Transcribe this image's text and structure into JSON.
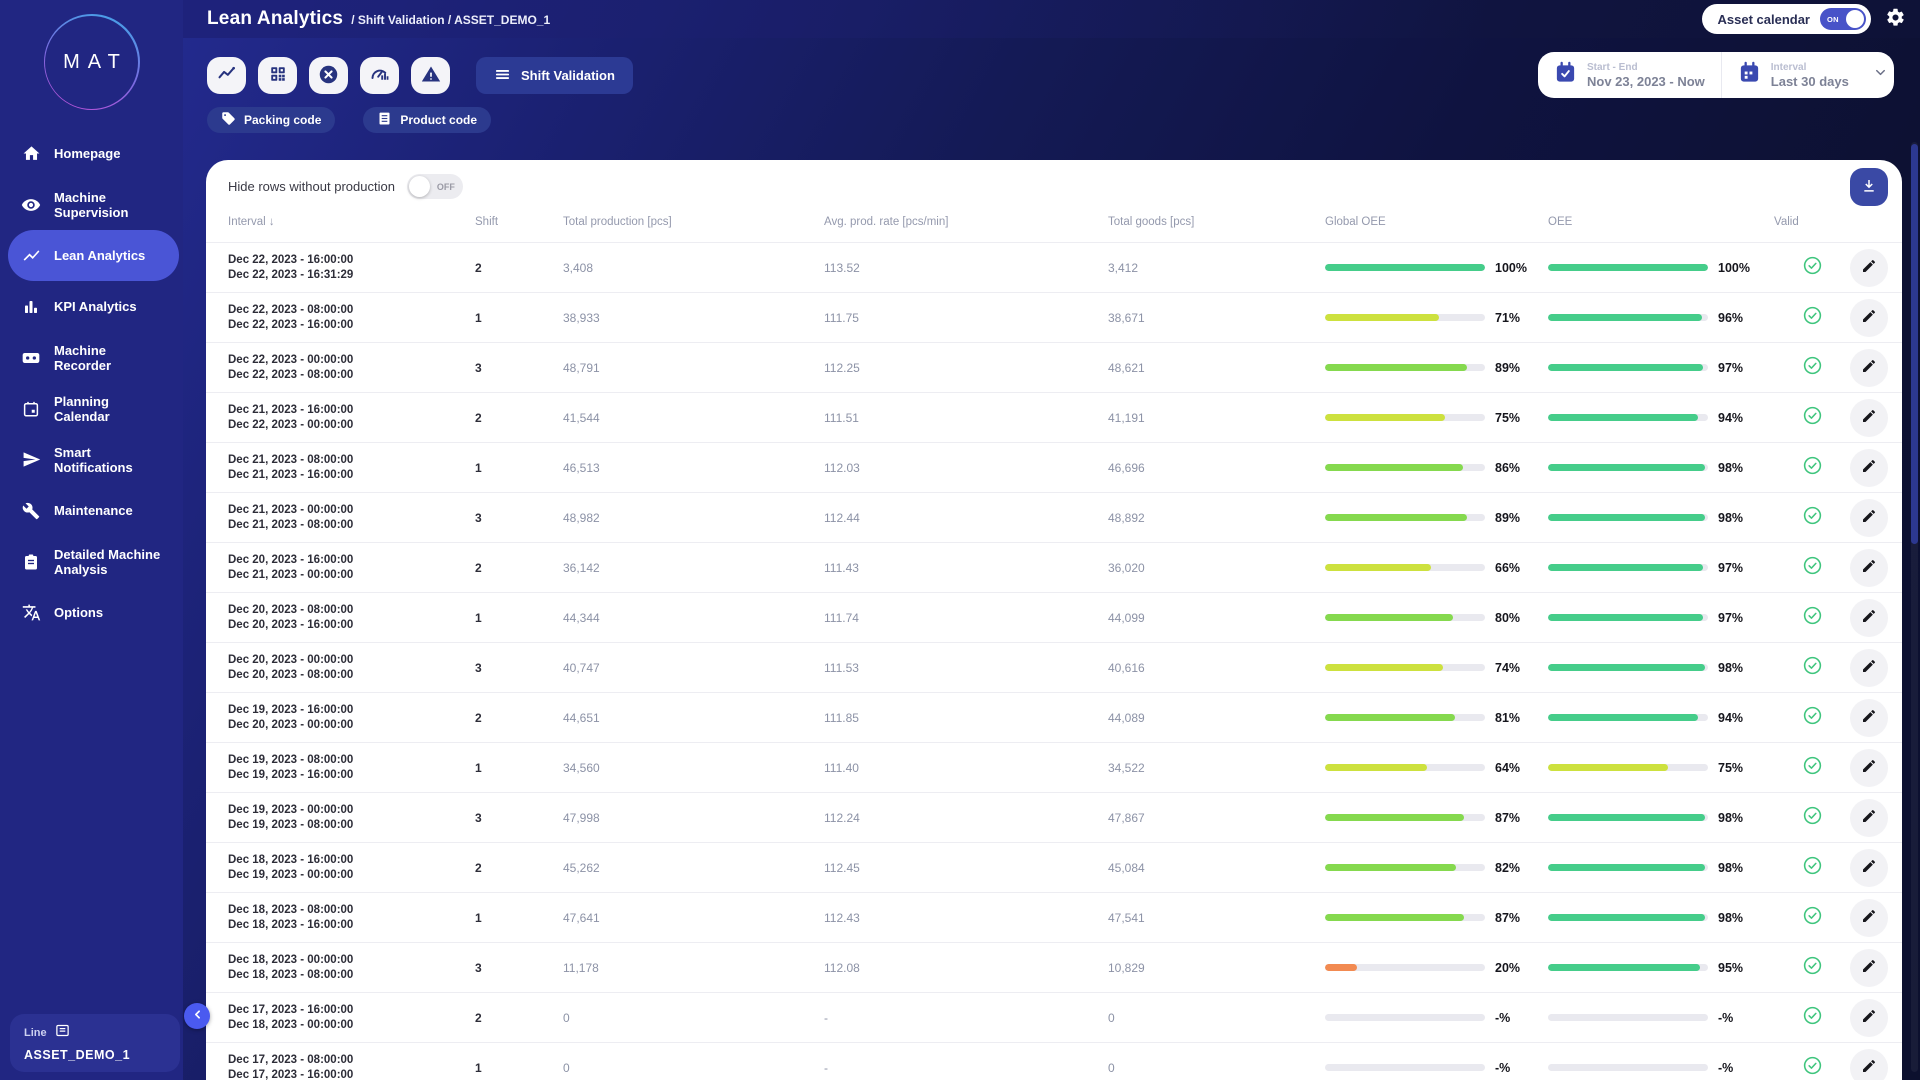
{
  "sidebar": {
    "logo_text": "MAT",
    "items": [
      {
        "label": "Homepage",
        "icon": "home"
      },
      {
        "label": "Machine Supervision",
        "icon": "eye"
      },
      {
        "label": "Lean Analytics",
        "icon": "trend-line",
        "active": true
      },
      {
        "label": "KPI Analytics",
        "icon": "bar-chart"
      },
      {
        "label": "Machine Recorder",
        "icon": "recorder"
      },
      {
        "label": "Planning Calendar",
        "icon": "calendar"
      },
      {
        "label": "Smart Notifications",
        "icon": "send"
      },
      {
        "label": "Maintenance",
        "icon": "wrench"
      },
      {
        "label": "Detailed Machine Analysis",
        "icon": "clipboard"
      },
      {
        "label": "Options",
        "icon": "translate"
      }
    ],
    "asset_widget": {
      "type_label": "Line",
      "asset_name": "ASSET_DEMO_1"
    }
  },
  "header": {
    "title": "Lean Analytics",
    "breadcrumb_separator": "/",
    "breadcrumbs": [
      "Shift Validation",
      "ASSET_DEMO_1"
    ],
    "asset_calendar_label": "Asset calendar",
    "asset_calendar_state": "ON"
  },
  "toolbar": {
    "view_buttons": [
      "line-chart",
      "qr-code",
      "stop-cross",
      "oee-gauge",
      "alarm-triangle"
    ],
    "active_view_label": "Shift Validation",
    "tags": [
      {
        "label": "Packing code",
        "icon": "tag"
      },
      {
        "label": "Product code",
        "icon": "receipt"
      }
    ],
    "date_range": {
      "label": "Start - End",
      "value": "Nov 23, 2023 - Now"
    },
    "interval": {
      "label": "Interval",
      "value": "Last 30 days"
    }
  },
  "table": {
    "hide_rows_label": "Hide rows without production",
    "hide_rows_state": "OFF",
    "sort_indicator": "↓",
    "columns": [
      "Interval",
      "Shift",
      "Total production [pcs]",
      "Avg. prod. rate [pcs/min]",
      "Total goods [pcs]",
      "Global OEE",
      "OEE",
      "Valid"
    ],
    "placeholders": {
      "rate": "-",
      "percent": "-%"
    },
    "rows": [
      {
        "start": "Dec 22, 2023 - 16:00:00",
        "end": "Dec 22, 2023 - 16:31:29",
        "shift": "2",
        "total_production": "3,408",
        "avg_rate": "113.52",
        "total_goods": "3,412",
        "global_oee": 100,
        "oee": 100
      },
      {
        "start": "Dec 22, 2023 - 08:00:00",
        "end": "Dec 22, 2023 - 16:00:00",
        "shift": "1",
        "total_production": "38,933",
        "avg_rate": "111.75",
        "total_goods": "38,671",
        "global_oee": 71,
        "oee": 96
      },
      {
        "start": "Dec 22, 2023 - 00:00:00",
        "end": "Dec 22, 2023 - 08:00:00",
        "shift": "3",
        "total_production": "48,791",
        "avg_rate": "112.25",
        "total_goods": "48,621",
        "global_oee": 89,
        "oee": 97
      },
      {
        "start": "Dec 21, 2023 - 16:00:00",
        "end": "Dec 22, 2023 - 00:00:00",
        "shift": "2",
        "total_production": "41,544",
        "avg_rate": "111.51",
        "total_goods": "41,191",
        "global_oee": 75,
        "oee": 94
      },
      {
        "start": "Dec 21, 2023 - 08:00:00",
        "end": "Dec 21, 2023 - 16:00:00",
        "shift": "1",
        "total_production": "46,513",
        "avg_rate": "112.03",
        "total_goods": "46,696",
        "global_oee": 86,
        "oee": 98
      },
      {
        "start": "Dec 21, 2023 - 00:00:00",
        "end": "Dec 21, 2023 - 08:00:00",
        "shift": "3",
        "total_production": "48,982",
        "avg_rate": "112.44",
        "total_goods": "48,892",
        "global_oee": 89,
        "oee": 98
      },
      {
        "start": "Dec 20, 2023 - 16:00:00",
        "end": "Dec 21, 2023 - 00:00:00",
        "shift": "2",
        "total_production": "36,142",
        "avg_rate": "111.43",
        "total_goods": "36,020",
        "global_oee": 66,
        "oee": 97
      },
      {
        "start": "Dec 20, 2023 - 08:00:00",
        "end": "Dec 20, 2023 - 16:00:00",
        "shift": "1",
        "total_production": "44,344",
        "avg_rate": "111.74",
        "total_goods": "44,099",
        "global_oee": 80,
        "oee": 97
      },
      {
        "start": "Dec 20, 2023 - 00:00:00",
        "end": "Dec 20, 2023 - 08:00:00",
        "shift": "3",
        "total_production": "40,747",
        "avg_rate": "111.53",
        "total_goods": "40,616",
        "global_oee": 74,
        "oee": 98
      },
      {
        "start": "Dec 19, 2023 - 16:00:00",
        "end": "Dec 20, 2023 - 00:00:00",
        "shift": "2",
        "total_production": "44,651",
        "avg_rate": "111.85",
        "total_goods": "44,089",
        "global_oee": 81,
        "oee": 94
      },
      {
        "start": "Dec 19, 2023 - 08:00:00",
        "end": "Dec 19, 2023 - 16:00:00",
        "shift": "1",
        "total_production": "34,560",
        "avg_rate": "111.40",
        "total_goods": "34,522",
        "global_oee": 64,
        "oee": 75
      },
      {
        "start": "Dec 19, 2023 - 00:00:00",
        "end": "Dec 19, 2023 - 08:00:00",
        "shift": "3",
        "total_production": "47,998",
        "avg_rate": "112.24",
        "total_goods": "47,867",
        "global_oee": 87,
        "oee": 98
      },
      {
        "start": "Dec 18, 2023 - 16:00:00",
        "end": "Dec 19, 2023 - 00:00:00",
        "shift": "2",
        "total_production": "45,262",
        "avg_rate": "112.45",
        "total_goods": "45,084",
        "global_oee": 82,
        "oee": 98
      },
      {
        "start": "Dec 18, 2023 - 08:00:00",
        "end": "Dec 18, 2023 - 16:00:00",
        "shift": "1",
        "total_production": "47,641",
        "avg_rate": "112.43",
        "total_goods": "47,541",
        "global_oee": 87,
        "oee": 98
      },
      {
        "start": "Dec 18, 2023 - 00:00:00",
        "end": "Dec 18, 2023 - 08:00:00",
        "shift": "3",
        "total_production": "11,178",
        "avg_rate": "112.08",
        "total_goods": "10,829",
        "global_oee": 20,
        "oee": 95
      },
      {
        "start": "Dec 17, 2023 - 16:00:00",
        "end": "Dec 18, 2023 - 00:00:00",
        "shift": "2",
        "total_production": "0",
        "avg_rate": null,
        "total_goods": "0",
        "global_oee": null,
        "oee": null
      },
      {
        "start": "Dec 17, 2023 - 08:00:00",
        "end": "Dec 17, 2023 - 16:00:00",
        "shift": "1",
        "total_production": "0",
        "avg_rate": null,
        "total_goods": "0",
        "global_oee": null,
        "oee": null
      }
    ]
  },
  "colors": {
    "accent": "#4a55d6",
    "bar_green": "#45cd8a",
    "bar_light_green": "#85d94e",
    "bar_yellow_green": "#cde13e",
    "bar_orange": "#f28a51",
    "bar_track": "#e9e9ef",
    "check_green": "#3fc57d",
    "toggle_on": "#4853c8"
  }
}
